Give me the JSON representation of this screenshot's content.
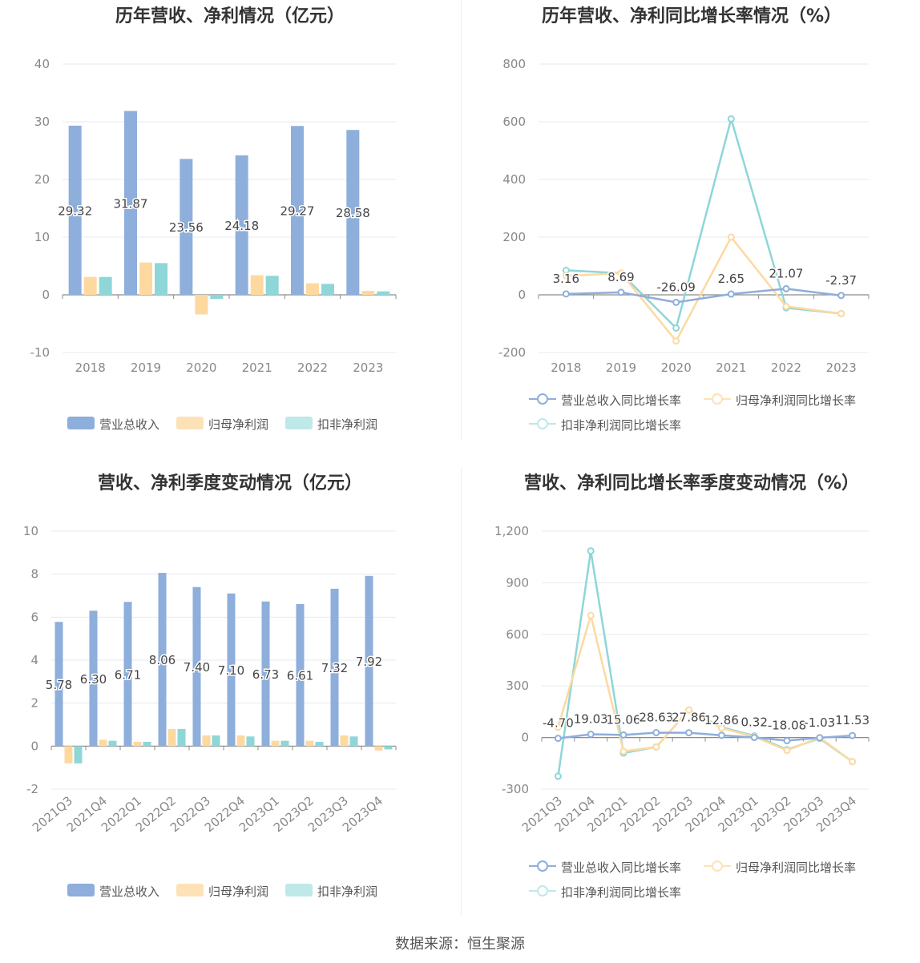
{
  "source": "数据来源：恒生聚源",
  "colors": {
    "revenue": "#8eaedb",
    "net_profit": "#fdd9a0",
    "deducted": "#8ed6d8",
    "grid": "#e6e9f0",
    "axis": "#999999"
  },
  "chart_data": [
    {
      "id": "annual-amount",
      "type": "bar",
      "title": "历年营收、净利情况（亿元）",
      "categories": [
        "2018",
        "2019",
        "2020",
        "2021",
        "2022",
        "2023"
      ],
      "ylim": [
        -10,
        40
      ],
      "yticks": [
        -10,
        0,
        10,
        20,
        30,
        40
      ],
      "series": [
        {
          "name": "营业总收入",
          "values": [
            29.32,
            31.87,
            23.56,
            24.18,
            29.27,
            28.58
          ],
          "labels": [
            "29.32",
            "31.87",
            "23.56",
            "24.18",
            "29.27",
            "28.58"
          ]
        },
        {
          "name": "归母净利润",
          "values": [
            3.1,
            5.6,
            -3.4,
            3.4,
            2.0,
            0.7
          ]
        },
        {
          "name": "扣非净利润",
          "values": [
            3.1,
            5.5,
            -0.7,
            3.3,
            1.9,
            0.6
          ]
        }
      ],
      "legend": "bottom",
      "grid": true
    },
    {
      "id": "annual-growth",
      "type": "line",
      "title": "历年营收、净利同比增长率情况（%）",
      "categories": [
        "2018",
        "2019",
        "2020",
        "2021",
        "2022",
        "2023"
      ],
      "ylim": [
        -200,
        800
      ],
      "yticks": [
        -200,
        0,
        200,
        400,
        600,
        800
      ],
      "series": [
        {
          "name": "营业总收入同比增长率",
          "values": [
            3.16,
            8.69,
            -26.09,
            2.65,
            21.07,
            -2.37
          ],
          "labels": [
            "3.16",
            "8.69",
            "-26.09",
            "2.65",
            "21.07",
            "-2.37"
          ]
        },
        {
          "name": "归母净利润同比增长率",
          "values": [
            66,
            75,
            -160,
            200,
            -40,
            -65
          ]
        },
        {
          "name": "扣非净利润同比增长率",
          "values": [
            85,
            75,
            -115,
            610,
            -45,
            -65
          ]
        }
      ],
      "legend": "bottom",
      "grid": true
    },
    {
      "id": "quarterly-amount",
      "type": "bar",
      "title": "营收、净利季度变动情况（亿元）",
      "categories": [
        "2021Q3",
        "2021Q4",
        "2022Q1",
        "2022Q2",
        "2022Q3",
        "2022Q4",
        "2023Q1",
        "2023Q2",
        "2023Q3",
        "2023Q4"
      ],
      "ylim": [
        -2,
        10
      ],
      "yticks": [
        -2,
        0,
        2,
        4,
        6,
        8,
        10
      ],
      "series": [
        {
          "name": "营业总收入",
          "values": [
            5.78,
            6.3,
            6.71,
            8.06,
            7.4,
            7.1,
            6.73,
            6.61,
            7.32,
            7.92
          ],
          "labels": [
            "5.78",
            "6.30",
            "6.71",
            "8.06",
            "7.40",
            "7.10",
            "6.73",
            "6.61",
            "7.32",
            "7.92"
          ]
        },
        {
          "name": "归母净利润",
          "values": [
            -0.8,
            0.3,
            0.2,
            0.8,
            0.5,
            0.5,
            0.25,
            0.25,
            0.5,
            -0.2
          ]
        },
        {
          "name": "扣非净利润",
          "values": [
            -0.8,
            0.25,
            0.2,
            0.8,
            0.5,
            0.45,
            0.25,
            0.2,
            0.45,
            -0.15
          ]
        }
      ],
      "legend": "bottom",
      "grid": true
    },
    {
      "id": "quarterly-growth",
      "type": "line",
      "title": "营收、净利同比增长率季度变动情况（%）",
      "categories": [
        "2021Q3",
        "2021Q4",
        "2022Q1",
        "2022Q2",
        "2022Q3",
        "2022Q4",
        "2023Q1",
        "2023Q2",
        "2023Q3",
        "2023Q4"
      ],
      "ylim": [
        -300,
        1200
      ],
      "yticks": [
        -300,
        0,
        300,
        600,
        900,
        1200
      ],
      "ytick_labels": [
        "-300",
        "0",
        "300",
        "600",
        "900",
        "1,200"
      ],
      "series": [
        {
          "name": "营业总收入同比增长率",
          "values": [
            -4.7,
            19.03,
            15.06,
            28.63,
            27.86,
            12.86,
            0.32,
            -18.08,
            -1.03,
            11.53
          ],
          "labels": [
            "-4.70",
            "19.03",
            "15.06",
            "28.63",
            "27.86",
            "12.86",
            "0.32",
            "-18.08",
            "-1.03",
            "11.53"
          ]
        },
        {
          "name": "归母净利润同比增长率",
          "values": [
            60,
            710,
            -80,
            -55,
            160,
            55,
            5,
            -75,
            0,
            -140
          ]
        },
        {
          "name": "扣非净利润同比增长率",
          "values": [
            -225,
            1085,
            -90,
            -55,
            160,
            60,
            10,
            -70,
            -5,
            -140
          ]
        }
      ],
      "legend": "bottom",
      "grid": true
    }
  ]
}
